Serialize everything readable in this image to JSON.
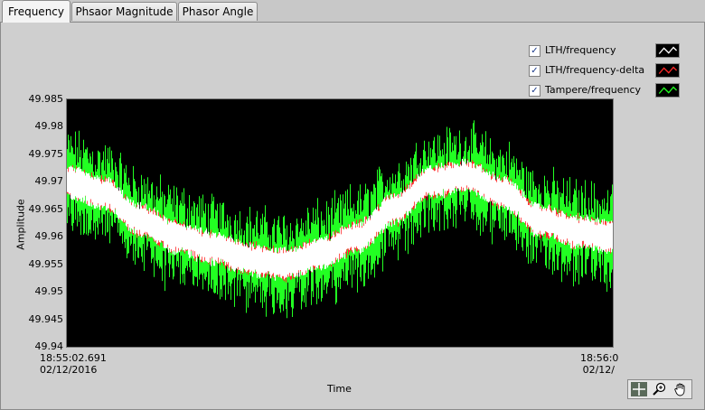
{
  "tabs": [
    {
      "label": "Frequency",
      "active": true
    },
    {
      "label": "Phsaor Magnitude",
      "active": false
    },
    {
      "label": "Phasor Angle",
      "active": false
    }
  ],
  "legend": [
    {
      "label": "LTH/frequency",
      "checked": true,
      "color": "#ffffff"
    },
    {
      "label": "LTH/frequency-delta",
      "checked": true,
      "color": "#ff2a2a"
    },
    {
      "label": "Tampere/frequency",
      "checked": true,
      "color": "#22ff22"
    }
  ],
  "chart_data": {
    "type": "line",
    "xlabel": "Time",
    "ylabel": "Amplitude",
    "ylim": [
      49.94,
      49.985
    ],
    "y_ticks": [
      "49.985",
      "49.98",
      "49.975",
      "49.97",
      "49.965",
      "49.96",
      "49.955",
      "49.95",
      "49.945",
      "49.94"
    ],
    "x_start_label": {
      "time": "18:55:02.691",
      "date": "02/12/2016"
    },
    "x_end_label": {
      "time": "18:56:0",
      "date": "02/12/"
    },
    "background": "#000000",
    "series": [
      {
        "name": "LTH/frequency",
        "color": "#ffffff",
        "values": [
          49.97,
          49.968,
          49.963,
          49.96,
          49.958,
          49.956,
          49.955,
          49.957,
          49.96,
          49.965,
          49.97,
          49.971,
          49.968,
          49.963,
          49.961,
          49.96
        ]
      },
      {
        "name": "LTH/frequency-delta",
        "color": "#ff2a2a",
        "values": [
          49.97,
          49.968,
          49.963,
          49.96,
          49.958,
          49.956,
          49.955,
          49.957,
          49.96,
          49.965,
          49.97,
          49.971,
          49.968,
          49.963,
          49.961,
          49.96
        ]
      },
      {
        "name": "Tampere/frequency",
        "color": "#22ff22",
        "values": [
          49.97,
          49.968,
          49.963,
          49.96,
          49.958,
          49.956,
          49.955,
          49.957,
          49.96,
          49.965,
          49.97,
          49.971,
          49.968,
          49.963,
          49.961,
          49.96
        ]
      }
    ]
  },
  "toolbar": [
    {
      "icon": "cursor-crosshair-icon",
      "selected": true
    },
    {
      "icon": "zoom-icon",
      "selected": false
    },
    {
      "icon": "pan-hand-icon",
      "selected": false
    }
  ]
}
